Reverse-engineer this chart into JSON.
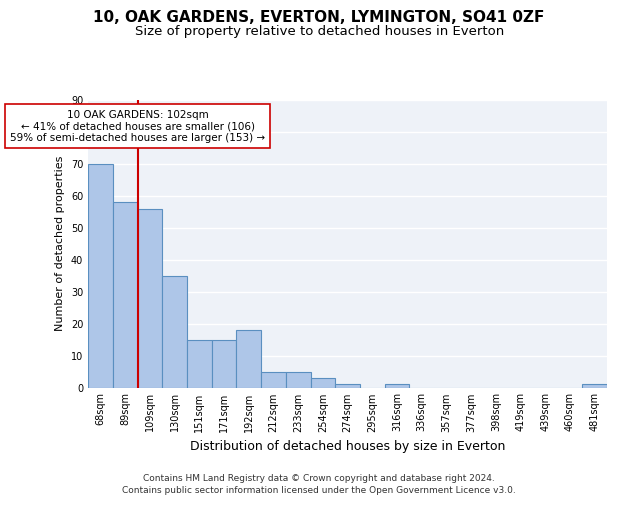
{
  "title1": "10, OAK GARDENS, EVERTON, LYMINGTON, SO41 0ZF",
  "title2": "Size of property relative to detached houses in Everton",
  "xlabel": "Distribution of detached houses by size in Everton",
  "ylabel": "Number of detached properties",
  "categories": [
    "68sqm",
    "89sqm",
    "109sqm",
    "130sqm",
    "151sqm",
    "171sqm",
    "192sqm",
    "212sqm",
    "233sqm",
    "254sqm",
    "274sqm",
    "295sqm",
    "316sqm",
    "336sqm",
    "357sqm",
    "377sqm",
    "398sqm",
    "419sqm",
    "439sqm",
    "460sqm",
    "481sqm"
  ],
  "values": [
    70,
    58,
    56,
    35,
    15,
    15,
    18,
    5,
    5,
    3,
    1,
    0,
    1,
    0,
    0,
    0,
    0,
    0,
    0,
    0,
    1
  ],
  "bar_color": "#aec6e8",
  "bar_edge_color": "#5a8fc0",
  "bar_edge_width": 0.8,
  "vline_x": 1.5,
  "vline_color": "#cc0000",
  "annotation_text": "10 OAK GARDENS: 102sqm\n← 41% of detached houses are smaller (106)\n59% of semi-detached houses are larger (153) →",
  "annotation_box_color": "#ffffff",
  "annotation_box_edgecolor": "#cc0000",
  "ylim": [
    0,
    90
  ],
  "yticks": [
    0,
    10,
    20,
    30,
    40,
    50,
    60,
    70,
    80,
    90
  ],
  "background_color": "#eef2f8",
  "grid_color": "#ffffff",
  "footer": "Contains HM Land Registry data © Crown copyright and database right 2024.\nContains public sector information licensed under the Open Government Licence v3.0.",
  "title_fontsize": 11,
  "subtitle_fontsize": 9.5,
  "xlabel_fontsize": 9,
  "ylabel_fontsize": 8,
  "tick_fontsize": 7,
  "footer_fontsize": 6.5,
  "annot_fontsize": 7.5
}
